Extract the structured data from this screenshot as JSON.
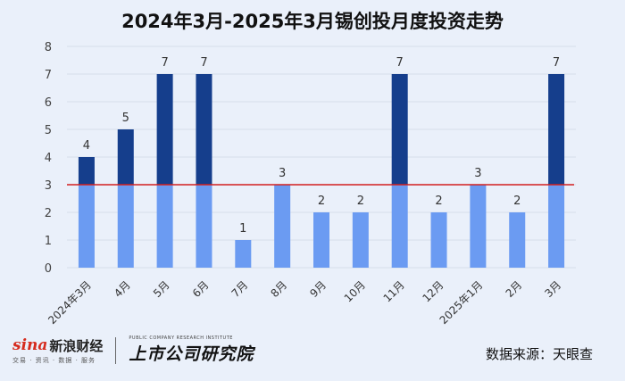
{
  "chart_data": {
    "type": "bar",
    "title": "2024年3月-2025年3月锡创投月度投资走势",
    "categories": [
      "2024年3月",
      "4月",
      "5月",
      "6月",
      "7月",
      "8月",
      "9月",
      "10月",
      "11月",
      "12月",
      "2025年1月",
      "2月",
      "3月"
    ],
    "values": [
      4,
      5,
      7,
      7,
      1,
      3,
      2,
      2,
      7,
      2,
      3,
      2,
      7
    ],
    "ylim": [
      0,
      8
    ],
    "yticks": [
      0,
      1,
      2,
      3,
      4,
      5,
      6,
      7,
      8
    ],
    "reference_line": 3,
    "grid": true,
    "colors": {
      "bar_below_line": "#6b9bf2",
      "bar_above_line": "#153e8c",
      "reference_line": "#d21f1f"
    }
  },
  "footer": {
    "brand_name": "sina",
    "brand_cn": "新浪财经",
    "brand_sub": "交易 · 资讯 · 数据 · 服务",
    "institute_en": "PUBLIC COMPANY RESEARCH INSTITUTE",
    "institute_cn": "上市公司研究院",
    "source": "数据来源：天眼查"
  }
}
